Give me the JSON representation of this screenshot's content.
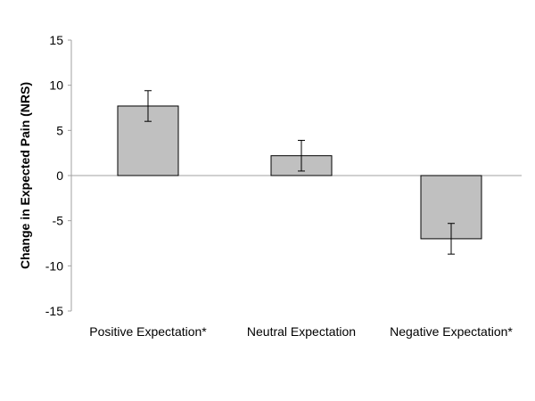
{
  "chart_data": {
    "type": "bar",
    "title": "",
    "xlabel": "",
    "ylabel": "Change in Expected Pain (NRS)",
    "categories": [
      "Positive Expectation*",
      "Neutral Expectation",
      "Negative Expectation*"
    ],
    "values": [
      7.7,
      2.2,
      -7.0
    ],
    "error": [
      1.7,
      1.7,
      1.7
    ],
    "ylim": [
      -15,
      15
    ],
    "yticks": [
      15,
      10,
      5,
      0,
      -5,
      -10,
      -15
    ],
    "grid": false,
    "colors": {
      "bar": "#c0c0c0",
      "bar_edge": "#000000",
      "axis": "#a0a0a0"
    }
  }
}
